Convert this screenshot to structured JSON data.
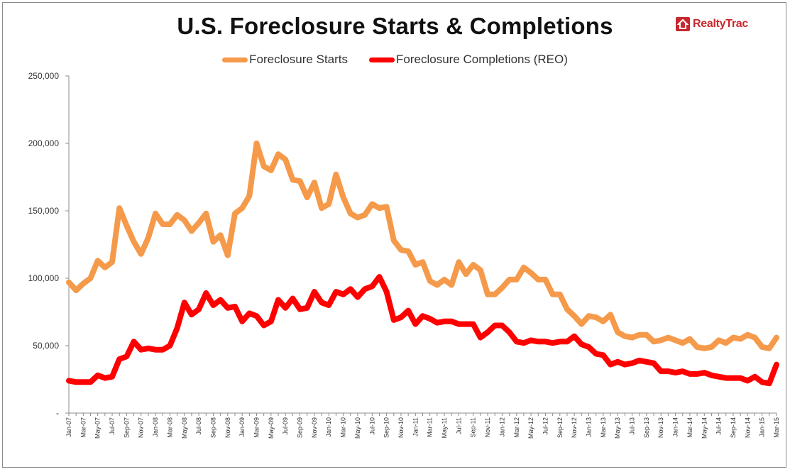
{
  "chart_data": {
    "type": "line",
    "title": "U.S. Foreclosure Starts & Completions",
    "brand": "RealtyTrac",
    "ylim": [
      0,
      250000
    ],
    "y_tick_values": [
      0,
      50000,
      100000,
      150000,
      200000,
      250000
    ],
    "y_tick_labels": [
      "-",
      "50,000",
      "100,000",
      "150,000",
      "200,000",
      "250,000"
    ],
    "x_tick_labels": [
      "Jan-07",
      "Mar-07",
      "May-07",
      "Jul-07",
      "Sep-07",
      "Nov-07",
      "Jan-08",
      "Mar-08",
      "May-08",
      "Jul-08",
      "Sep-08",
      "Nov-08",
      "Jan-09",
      "Mar-09",
      "May-09",
      "Jul-09",
      "Sep-09",
      "Nov-09",
      "Jan-10",
      "Mar-10",
      "May-10",
      "Jul-10",
      "Sep-10",
      "Nov-10",
      "Jan-11",
      "Mar-11",
      "May-11",
      "Jul-11",
      "Sep-11",
      "Nov-11",
      "Jan-12",
      "Mar-12",
      "May-12",
      "Jul-12",
      "Sep-12",
      "Nov-12",
      "Jan-13",
      "Mar-13",
      "May-13",
      "Jul-13",
      "Sep-13",
      "Nov-13",
      "Jan-14",
      "Mar-14",
      "May-14",
      "Jul-14",
      "Sep-14",
      "Nov-14",
      "Jan-15",
      "Mar-15"
    ],
    "x_count": 99,
    "legend_position": "top-center",
    "grid": false,
    "series": [
      {
        "name": "Foreclosure Starts",
        "color": "#f59a4a",
        "values": [
          97000,
          91000,
          96000,
          100000,
          113000,
          108000,
          112000,
          152000,
          139000,
          127000,
          118000,
          130000,
          148000,
          140000,
          140000,
          147000,
          143000,
          135000,
          141000,
          148000,
          127000,
          132000,
          117000,
          148000,
          152000,
          161000,
          200000,
          183000,
          180000,
          192000,
          188000,
          173000,
          172000,
          160000,
          171000,
          152000,
          155000,
          177000,
          160000,
          148000,
          145000,
          147000,
          155000,
          152000,
          153000,
          128000,
          121000,
          120000,
          110000,
          112000,
          98000,
          95000,
          99000,
          95000,
          112000,
          103000,
          110000,
          106000,
          88000,
          88000,
          93000,
          99000,
          99000,
          108000,
          104000,
          99000,
          99000,
          88000,
          88000,
          77000,
          72000,
          66000,
          72000,
          71000,
          68000,
          73000,
          60000,
          57000,
          56000,
          58000,
          58000,
          53000,
          54000,
          56000,
          54000,
          52000,
          55000,
          49000,
          48000,
          49000,
          54000,
          52000,
          56000,
          55000,
          58000,
          56000,
          49000,
          48000,
          56000
        ]
      },
      {
        "name": "Foreclosure Completions (REO)",
        "color": "#ff0000",
        "values": [
          24000,
          23000,
          23000,
          23000,
          28000,
          26000,
          27000,
          40000,
          42000,
          53000,
          47000,
          48000,
          47000,
          47000,
          50000,
          63000,
          82000,
          73000,
          77000,
          89000,
          80000,
          84000,
          78000,
          79000,
          68000,
          74000,
          72000,
          65000,
          68000,
          84000,
          78000,
          85000,
          77000,
          78000,
          90000,
          82000,
          80000,
          90000,
          88000,
          92000,
          86000,
          92000,
          94000,
          101000,
          90000,
          69000,
          71000,
          76000,
          66000,
          72000,
          70000,
          67000,
          68000,
          68000,
          66000,
          66000,
          66000,
          56000,
          60000,
          65000,
          65000,
          60000,
          53000,
          52000,
          54000,
          53000,
          53000,
          52000,
          53000,
          53000,
          57000,
          51000,
          49000,
          44000,
          43000,
          36000,
          38000,
          36000,
          37000,
          39000,
          38000,
          37000,
          31000,
          31000,
          30000,
          31000,
          29000,
          29000,
          30000,
          28000,
          27000,
          26000,
          26000,
          26000,
          24000,
          27000,
          23000,
          22000,
          36000
        ]
      }
    ]
  }
}
